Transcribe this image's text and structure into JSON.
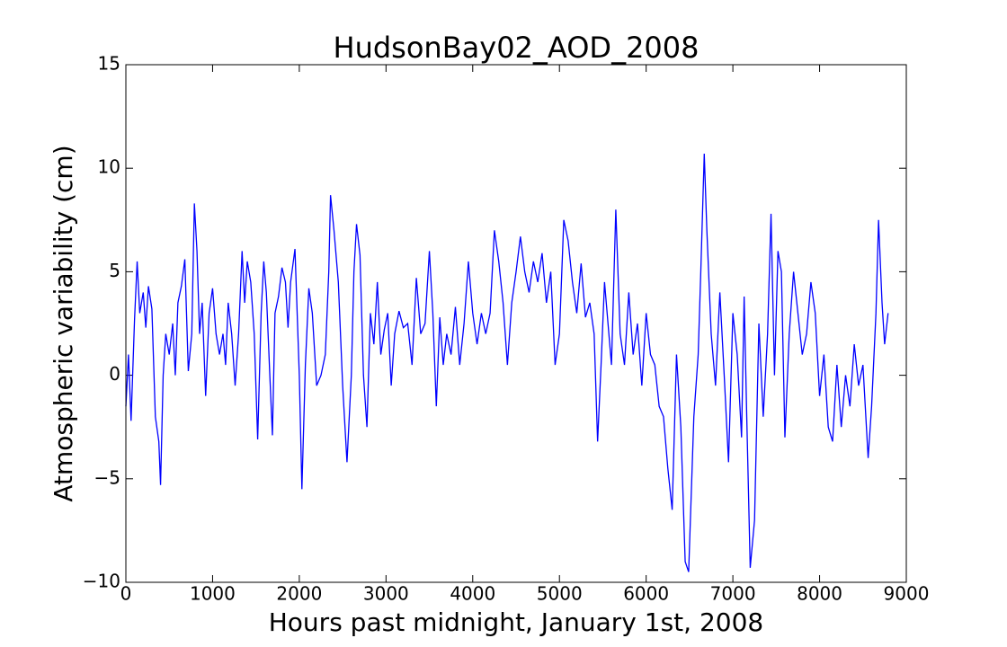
{
  "chart_data": {
    "type": "line",
    "title": "HudsonBay02_AOD_2008",
    "xlabel": "Hours past midnight, January 1st, 2008",
    "ylabel": "Atmospheric variability (cm)",
    "xlim": [
      0,
      9000
    ],
    "ylim": [
      -10,
      15
    ],
    "xticks": [
      0,
      1000,
      2000,
      3000,
      4000,
      5000,
      6000,
      7000,
      8000,
      9000
    ],
    "yticks": [
      {
        "value": -10,
        "label": "−10"
      },
      {
        "value": -5,
        "label": "−5"
      },
      0,
      5,
      10,
      15
    ],
    "color": "#0000ff",
    "x": [
      0,
      30,
      60,
      100,
      130,
      160,
      200,
      230,
      260,
      300,
      340,
      380,
      400,
      430,
      460,
      500,
      540,
      570,
      600,
      640,
      680,
      720,
      760,
      790,
      820,
      850,
      880,
      920,
      960,
      1000,
      1040,
      1080,
      1120,
      1150,
      1180,
      1220,
      1260,
      1300,
      1340,
      1370,
      1400,
      1440,
      1480,
      1520,
      1560,
      1590,
      1620,
      1660,
      1690,
      1720,
      1760,
      1800,
      1840,
      1870,
      1900,
      1950,
      2000,
      2030,
      2070,
      2110,
      2150,
      2200,
      2250,
      2300,
      2340,
      2360,
      2400,
      2450,
      2500,
      2550,
      2600,
      2630,
      2660,
      2700,
      2740,
      2780,
      2820,
      2860,
      2900,
      2940,
      2980,
      3020,
      3060,
      3100,
      3150,
      3200,
      3250,
      3300,
      3350,
      3400,
      3450,
      3500,
      3540,
      3580,
      3620,
      3660,
      3700,
      3750,
      3800,
      3850,
      3900,
      3950,
      4000,
      4050,
      4100,
      4150,
      4200,
      4250,
      4300,
      4350,
      4400,
      4450,
      4500,
      4550,
      4600,
      4650,
      4700,
      4750,
      4800,
      4850,
      4900,
      4950,
      5000,
      5050,
      5100,
      5150,
      5200,
      5250,
      5300,
      5350,
      5400,
      5440,
      5480,
      5520,
      5560,
      5600,
      5650,
      5700,
      5750,
      5800,
      5850,
      5900,
      5950,
      6000,
      6050,
      6100,
      6150,
      6200,
      6250,
      6300,
      6350,
      6400,
      6450,
      6490,
      6550,
      6600,
      6630,
      6670,
      6700,
      6750,
      6800,
      6850,
      6900,
      6950,
      7000,
      7050,
      7100,
      7130,
      7160,
      7200,
      7250,
      7300,
      7350,
      7400,
      7440,
      7480,
      7520,
      7560,
      7600,
      7650,
      7700,
      7750,
      7800,
      7850,
      7900,
      7950,
      8000,
      8050,
      8100,
      8150,
      8200,
      8250,
      8300,
      8350,
      8400,
      8450,
      8500,
      8560,
      8600,
      8650,
      8680,
      8720,
      8750,
      8790
    ],
    "values": [
      -1.5,
      1,
      -2.2,
      2.7,
      5.5,
      3,
      4,
      2.3,
      4.3,
      3.2,
      -2,
      -3.2,
      -5.3,
      0,
      2,
      1,
      2.5,
      0,
      3.5,
      4.3,
      5.6,
      0.2,
      2,
      8.3,
      6,
      2,
      3.5,
      -1,
      3,
      4.2,
      2,
      1,
      2,
      0.5,
      3.5,
      2,
      -0.5,
      2,
      6,
      3.5,
      5.5,
      4.5,
      2,
      -3.1,
      3,
      5.5,
      4,
      0,
      -2.9,
      3,
      3.8,
      5.2,
      4.5,
      2.3,
      4.5,
      6.1,
      0,
      -5.5,
      0.5,
      4.2,
      3,
      -0.5,
      0,
      1,
      5,
      8.7,
      7,
      4.5,
      -0.5,
      -4.2,
      0,
      5,
      7.3,
      5.8,
      0,
      -2.5,
      3,
      1.5,
      4.5,
      1,
      2.2,
      3,
      -0.5,
      2,
      3.1,
      2.3,
      2.5,
      0.5,
      4.7,
      2,
      2.5,
      6,
      3,
      -1.5,
      2.8,
      0.5,
      2,
      1,
      3.3,
      0.5,
      2.5,
      5.5,
      3,
      1.5,
      3,
      2,
      3,
      7,
      5.5,
      3.5,
      0.5,
      3.5,
      5,
      6.7,
      5,
      4,
      5.5,
      4.5,
      5.9,
      3.5,
      5,
      0.5,
      2,
      7.5,
      6.5,
      4.5,
      3,
      5.4,
      2.8,
      3.5,
      2,
      -3.2,
      0.5,
      4.5,
      2.5,
      0.5,
      8,
      2,
      0.5,
      4,
      1,
      2.5,
      -0.5,
      3,
      1,
      0.5,
      -1.5,
      -2,
      -4.5,
      -6.5,
      1,
      -2.5,
      -9,
      -9.5,
      -2,
      1,
      5,
      10.7,
      7,
      2,
      -0.5,
      4,
      0,
      -4.2,
      3,
      1,
      -3,
      3.8,
      -2,
      -9.3,
      -7,
      2.5,
      -2,
      2,
      7.8,
      0,
      6,
      5,
      -3,
      2,
      5,
      3,
      1,
      2,
      4.5,
      3,
      -1,
      1,
      -2.5,
      -3.2,
      0.5,
      -2.5,
      0,
      -1.5,
      1.5,
      -0.5,
      0.5,
      -4,
      -1.5,
      3,
      7.5,
      3.5,
      1.5,
      3
    ]
  }
}
